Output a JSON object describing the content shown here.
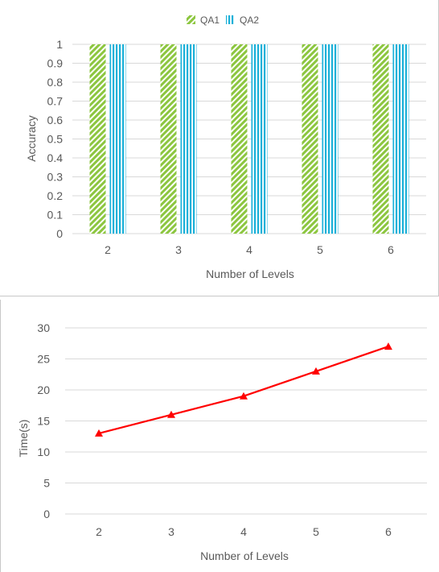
{
  "chart_data": [
    {
      "type": "bar",
      "categories": [
        "2",
        "3",
        "4",
        "5",
        "6"
      ],
      "series": [
        {
          "name": "QA1",
          "values": [
            1,
            1,
            1,
            1,
            1
          ],
          "color": "#8cc63f",
          "pattern": "diagonal-stripes"
        },
        {
          "name": "QA2",
          "values": [
            1,
            1,
            1,
            1,
            1
          ],
          "color": "#1ab0d8",
          "pattern": "vertical-stripes"
        }
      ],
      "xlabel": "Number of Levels",
      "ylabel": "Accuracy",
      "ylim": [
        0,
        1
      ],
      "yticks": [
        "0",
        "0.1",
        "0.2",
        "0.3",
        "0.4",
        "0.5",
        "0.6",
        "0.7",
        "0.8",
        "0.9",
        "1"
      ],
      "grid": true,
      "legend": "top-center"
    },
    {
      "type": "line",
      "x": [
        "2",
        "3",
        "4",
        "5",
        "6"
      ],
      "series": [
        {
          "values": [
            13,
            16,
            19,
            23,
            27
          ],
          "color": "#ff0000",
          "marker": "triangle"
        }
      ],
      "xlabel": "Number of Levels",
      "ylabel": "Time(s)",
      "ylim": [
        0,
        30
      ],
      "yticks": [
        "0",
        "5",
        "10",
        "15",
        "20",
        "25",
        "30"
      ],
      "grid": true,
      "legend": "none"
    }
  ]
}
